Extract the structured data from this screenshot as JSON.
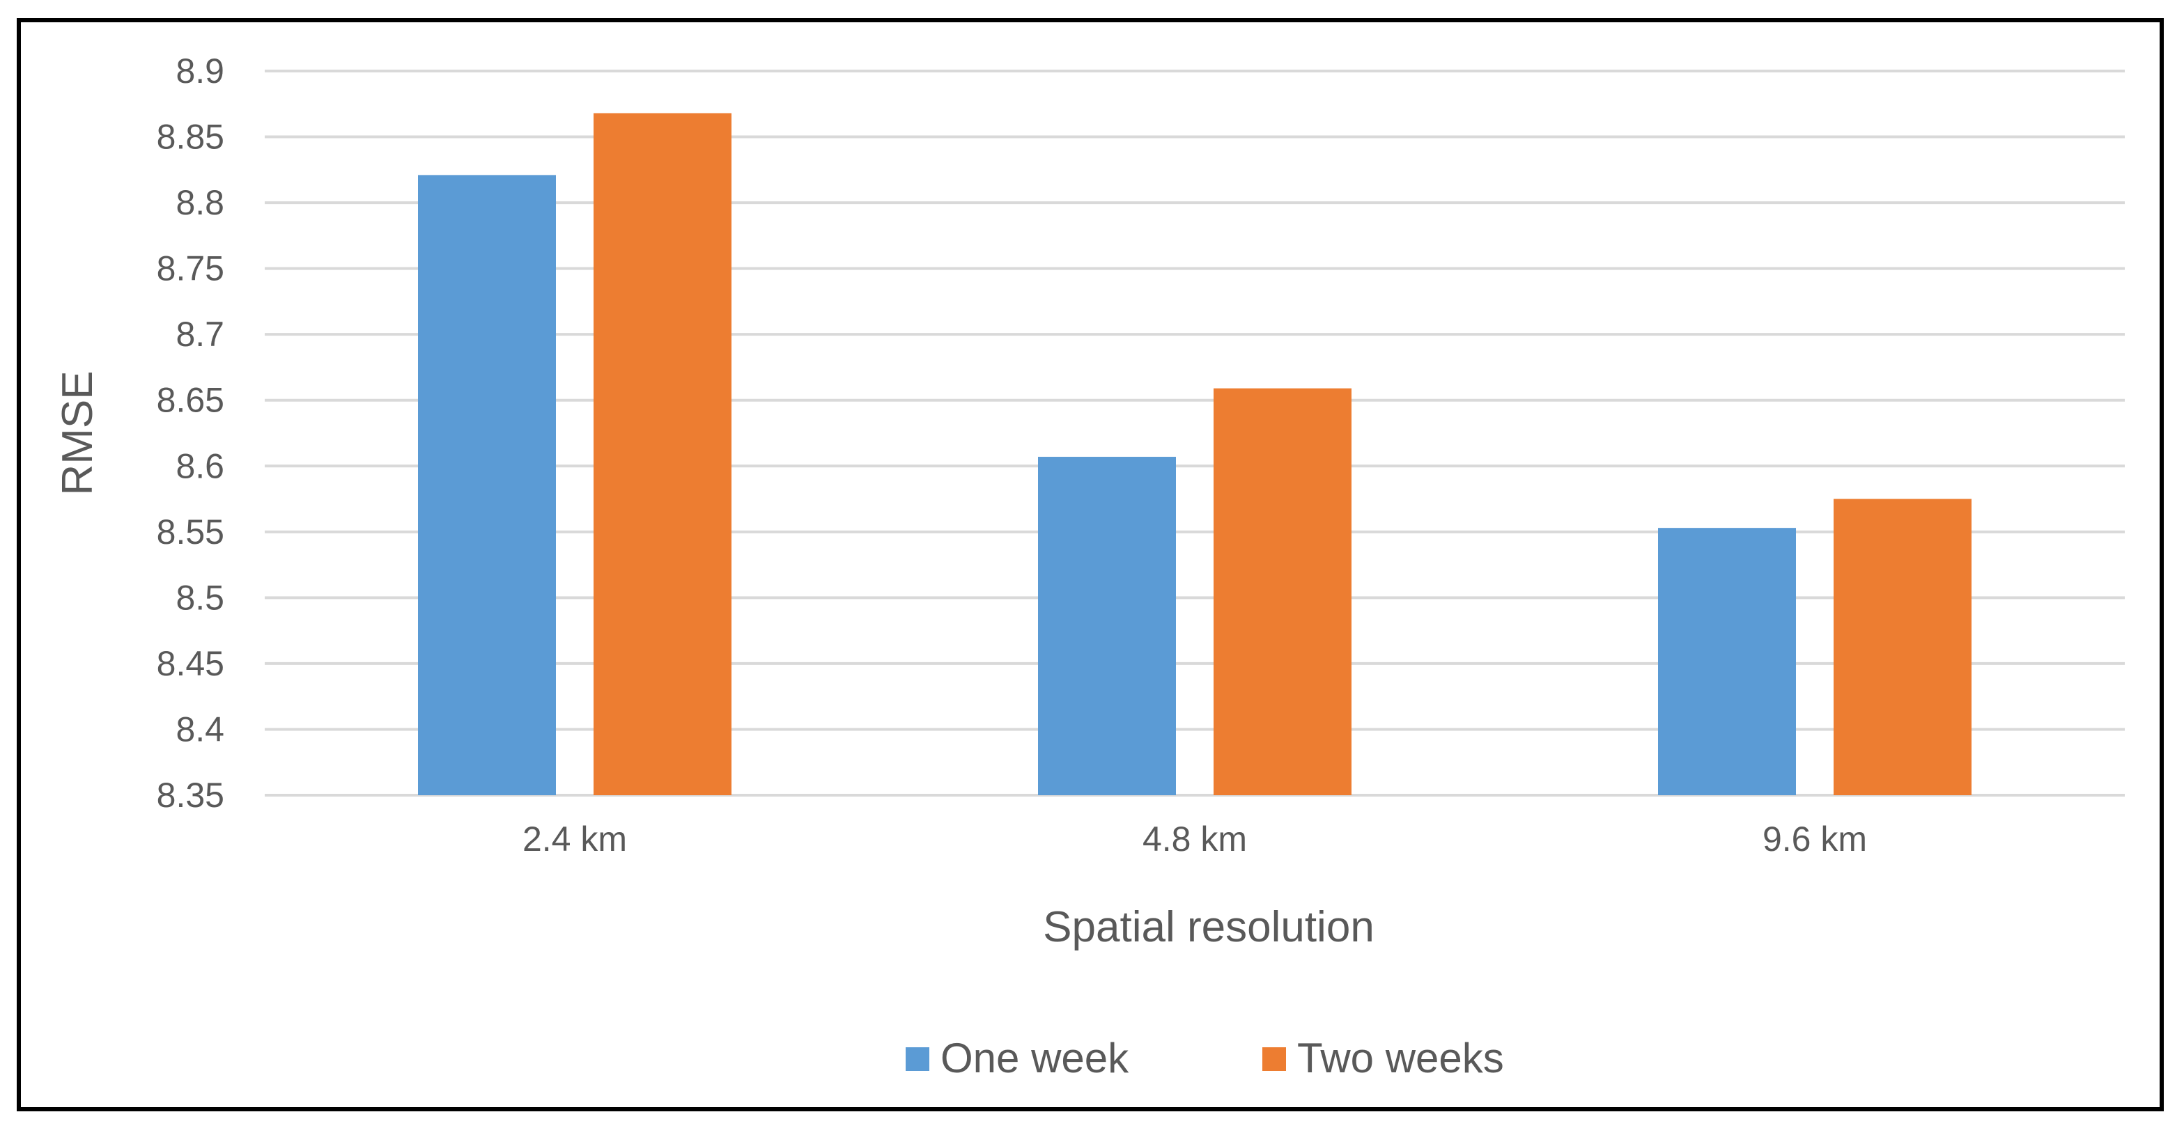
{
  "chart_data": {
    "type": "bar",
    "categories": [
      "2.4 km",
      "4.8 km",
      "9.6 km"
    ],
    "series": [
      {
        "name": "One week",
        "values": [
          8.821,
          8.607,
          8.553
        ]
      },
      {
        "name": "Two weeks",
        "values": [
          8.868,
          8.659,
          8.575
        ]
      }
    ],
    "title": "",
    "xlabel": "Spatial resolution",
    "ylabel": "RMSE",
    "ylim": [
      8.35,
      8.9
    ],
    "yticks": [
      "8.35",
      "8.4",
      "8.45",
      "8.5",
      "8.55",
      "8.6",
      "8.65",
      "8.7",
      "8.75",
      "8.8",
      "8.85",
      "8.9"
    ],
    "grid": true,
    "legend_position": "bottom",
    "colors": {
      "One week": "#5B9BD5",
      "Two weeks": "#ED7D31",
      "gridline": "#D9D9D9",
      "text": "#595959",
      "border": "#000000"
    }
  }
}
